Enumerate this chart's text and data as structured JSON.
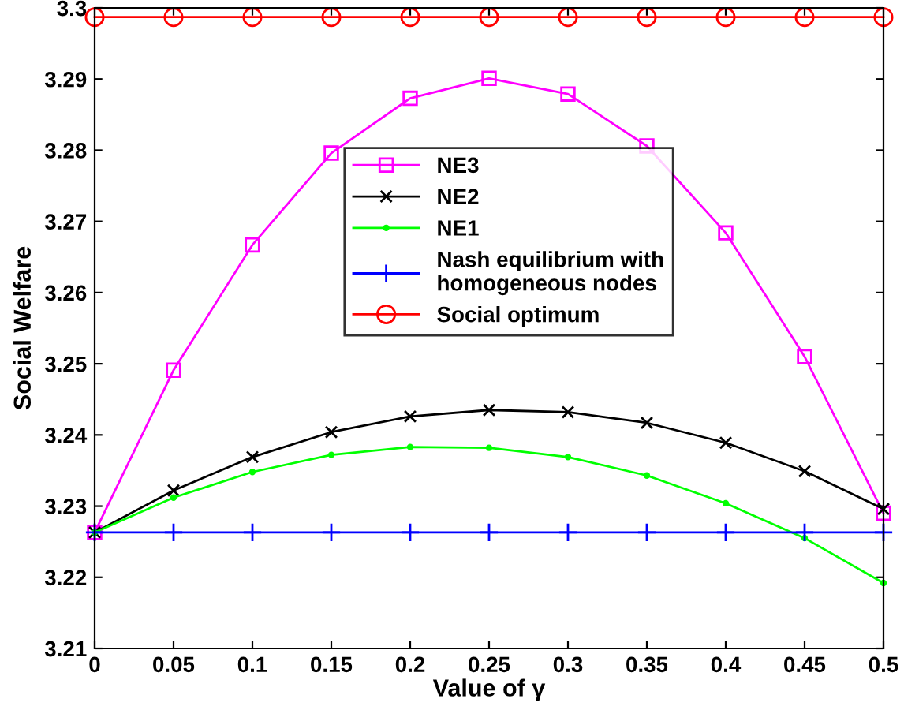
{
  "chart_data": {
    "type": "line",
    "xlabel": "Value of γ",
    "ylabel": "Social Welfare",
    "x": [
      0,
      0.05,
      0.1,
      0.15,
      0.2,
      0.25,
      0.3,
      0.35,
      0.4,
      0.45,
      0.5
    ],
    "xlim": [
      0,
      0.5
    ],
    "xticks": [
      0,
      0.05,
      0.1,
      0.15,
      0.2,
      0.25,
      0.3,
      0.35,
      0.4,
      0.45,
      0.5
    ],
    "ylim": [
      3.21,
      3.3
    ],
    "yticks": [
      3.21,
      3.22,
      3.23,
      3.24,
      3.25,
      3.26,
      3.27,
      3.28,
      3.29,
      3.3
    ],
    "grid": false,
    "legend": "center",
    "series": [
      {
        "name": "NE3",
        "color": "#ff00ff",
        "marker": "square",
        "values": [
          3.2263,
          3.2491,
          3.2667,
          3.2796,
          3.2873,
          3.2901,
          3.2879,
          3.2806,
          3.2684,
          3.251,
          3.229
        ]
      },
      {
        "name": "NE2",
        "color": "#000000",
        "marker": "cross",
        "values": [
          3.2263,
          3.2322,
          3.2369,
          3.2404,
          3.2426,
          3.2435,
          3.2432,
          3.2417,
          3.2389,
          3.2349,
          3.2296
        ]
      },
      {
        "name": "NE1",
        "color": "#00ff00",
        "marker": "circle",
        "values": [
          3.2263,
          3.2312,
          3.2348,
          3.2372,
          3.2383,
          3.2382,
          3.2369,
          3.2343,
          3.2304,
          3.2255,
          3.2192
        ]
      },
      {
        "name": "Nash equilibrium with\nhomogeneous nodes",
        "color": "#0000ff",
        "marker": "plus",
        "values": [
          3.2263,
          3.2263,
          3.2263,
          3.2263,
          3.2263,
          3.2263,
          3.2263,
          3.2263,
          3.2263,
          3.2263,
          3.2263
        ]
      },
      {
        "name": "Social optimum",
        "color": "#ff0000",
        "marker": "circle_open",
        "values": [
          3.2987,
          3.2987,
          3.2987,
          3.2987,
          3.2987,
          3.2987,
          3.2987,
          3.2987,
          3.2987,
          3.2987,
          3.2987
        ]
      }
    ]
  }
}
